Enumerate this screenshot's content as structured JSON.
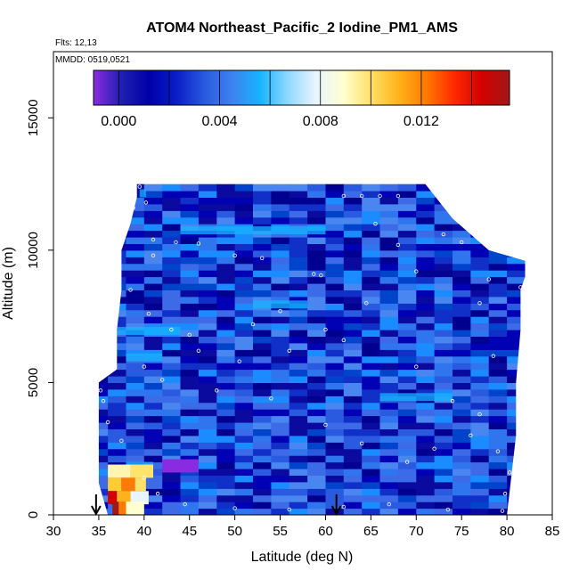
{
  "chart_data": {
    "type": "heatmap",
    "title": "ATOM4 Northeast_Pacific_2 Iodine_PM1_AMS",
    "flights_label": "Flts: 12,13",
    "dates_label": "MMDD: 0519,0521",
    "xlabel": "Latitude (deg N)",
    "ylabel": "Altitude (m)",
    "xlim": [
      30,
      85
    ],
    "ylim": [
      0,
      17500
    ],
    "xticks": [
      "30",
      "35",
      "40",
      "45",
      "50",
      "55",
      "60",
      "65",
      "70",
      "75",
      "80",
      "85"
    ],
    "yticks": [
      "0",
      "5000",
      "10000",
      "15000"
    ],
    "colorbar": {
      "range": [
        -0.001,
        0.0155
      ],
      "tick_values": [
        0.0,
        0.004,
        0.008,
        0.012
      ],
      "tick_labels": [
        "0.000",
        "0.004",
        "0.008",
        "0.012"
      ],
      "colors": [
        "#8a2be2",
        "#1f1fb0",
        "#0000a8",
        "#0a1ec8",
        "#2a5adf",
        "#3d82ee",
        "#17b3ff",
        "#8fd8ff",
        "#e8f4ff",
        "#ffffd0",
        "#ffe066",
        "#ffb31a",
        "#ff7a00",
        "#ff2a00",
        "#d40000",
        "#a01818"
      ]
    },
    "arrows_latitude": [
      34.7,
      61.2
    ],
    "domain_outline": [
      [
        36,
        0
      ],
      [
        35,
        1200
      ],
      [
        35,
        3000
      ],
      [
        35,
        5000
      ],
      [
        37,
        5500
      ],
      [
        37,
        7000
      ],
      [
        37.5,
        8500
      ],
      [
        37.5,
        10000
      ],
      [
        38.5,
        11000
      ],
      [
        39.2,
        12000
      ],
      [
        39.2,
        12500
      ],
      [
        71,
        12500
      ],
      [
        74,
        11200
      ],
      [
        78,
        10000
      ],
      [
        82,
        9600
      ],
      [
        82,
        9000
      ],
      [
        81.5,
        8500
      ],
      [
        81.5,
        7000
      ],
      [
        81,
        5000
      ],
      [
        81,
        3000
      ],
      [
        80.5,
        1500
      ],
      [
        80,
        0
      ]
    ],
    "sample_points": [
      [
        40.2,
        11800
      ],
      [
        41,
        10400
      ],
      [
        43.5,
        10300
      ],
      [
        46,
        10250
      ],
      [
        50,
        9800
      ],
      [
        53,
        9700
      ],
      [
        58.7,
        9100
      ],
      [
        59.5,
        9050
      ],
      [
        62,
        12050
      ],
      [
        64,
        12050
      ],
      [
        66,
        12050
      ],
      [
        68,
        12050
      ],
      [
        73,
        10600
      ],
      [
        75,
        10300
      ],
      [
        78,
        8900
      ],
      [
        81.5,
        8600
      ],
      [
        38.5,
        8500
      ],
      [
        40.5,
        7600
      ],
      [
        45,
        6800
      ],
      [
        52,
        7200
      ],
      [
        55,
        7700
      ],
      [
        62,
        6600
      ],
      [
        70,
        5600
      ],
      [
        74,
        4300
      ],
      [
        77,
        3800
      ],
      [
        79,
        2400
      ],
      [
        80.3,
        1600
      ],
      [
        79.8,
        800
      ],
      [
        79.5,
        150
      ],
      [
        73.5,
        200
      ],
      [
        67,
        400
      ],
      [
        62,
        300
      ],
      [
        56,
        200
      ],
      [
        50,
        250
      ],
      [
        44.5,
        400
      ],
      [
        41.5,
        800
      ],
      [
        40,
        1400
      ],
      [
        37.5,
        2800
      ],
      [
        36,
        3500
      ],
      [
        35.5,
        4300
      ],
      [
        35.2,
        4700
      ],
      [
        40,
        5600
      ],
      [
        42,
        5100
      ],
      [
        48,
        4700
      ],
      [
        54,
        4400
      ],
      [
        60,
        3400
      ],
      [
        64,
        2700
      ],
      [
        69,
        2000
      ],
      [
        72,
        2500
      ],
      [
        76,
        3000
      ],
      [
        78.5,
        6000
      ],
      [
        77,
        8000
      ],
      [
        70,
        9200
      ],
      [
        64.5,
        8000
      ],
      [
        60,
        7000
      ],
      [
        56,
        6200
      ],
      [
        50.5,
        5800
      ],
      [
        46,
        6200
      ],
      [
        43,
        7000
      ],
      [
        41,
        9800
      ],
      [
        38.8,
        11600
      ],
      [
        39.5,
        12400
      ],
      [
        65.5,
        11000
      ],
      [
        68,
        10200
      ]
    ]
  }
}
